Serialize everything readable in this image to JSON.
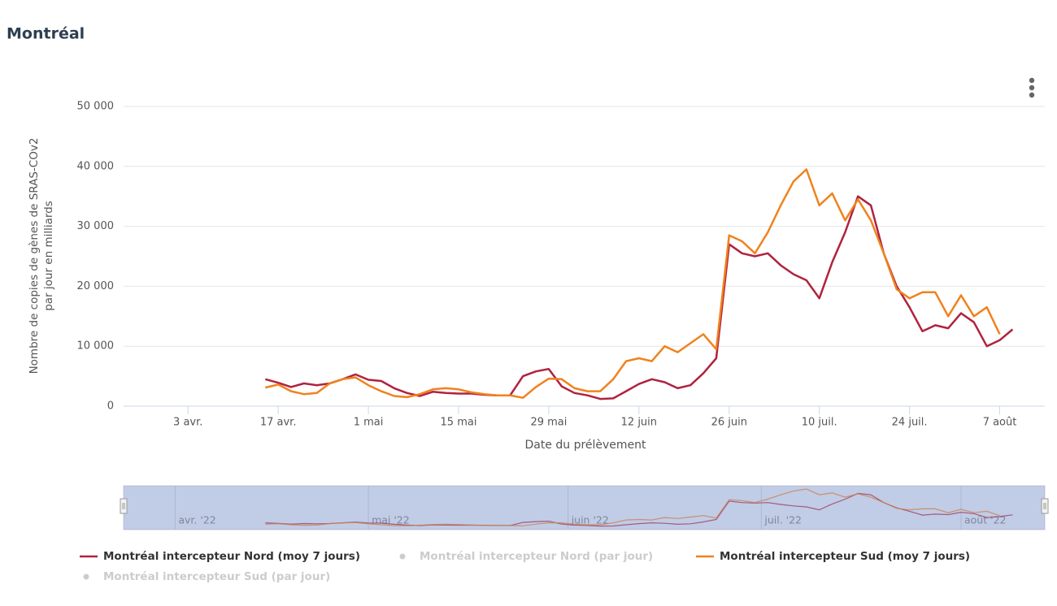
{
  "chart_data": {
    "type": "line",
    "title": "Montréal",
    "x_label": "Date du prélèvement",
    "y_label": [
      "Nombre de copies de gènes de SRAS-COv2",
      "par jour en milliards"
    ],
    "x": [
      "2022-04-15",
      "2022-04-17",
      "2022-04-19",
      "2022-04-21",
      "2022-04-23",
      "2022-04-25",
      "2022-04-27",
      "2022-04-29",
      "2022-05-01",
      "2022-05-03",
      "2022-05-05",
      "2022-05-07",
      "2022-05-09",
      "2022-05-11",
      "2022-05-13",
      "2022-05-15",
      "2022-05-17",
      "2022-05-19",
      "2022-05-21",
      "2022-05-23",
      "2022-05-25",
      "2022-05-27",
      "2022-05-29",
      "2022-05-31",
      "2022-06-02",
      "2022-06-04",
      "2022-06-06",
      "2022-06-08",
      "2022-06-10",
      "2022-06-12",
      "2022-06-14",
      "2022-06-16",
      "2022-06-18",
      "2022-06-20",
      "2022-06-22",
      "2022-06-24",
      "2022-06-26",
      "2022-06-28",
      "2022-06-30",
      "2022-07-02",
      "2022-07-04",
      "2022-07-06",
      "2022-07-08",
      "2022-07-10",
      "2022-07-12",
      "2022-07-14",
      "2022-07-16",
      "2022-07-18",
      "2022-07-20",
      "2022-07-22",
      "2022-07-24",
      "2022-07-26",
      "2022-07-28",
      "2022-07-30",
      "2022-08-01",
      "2022-08-03",
      "2022-08-05",
      "2022-08-07",
      "2022-08-09"
    ],
    "series": [
      {
        "name": "Montréal intercepteur Nord (moy 7 jours)",
        "color": "#b0223f",
        "visible": true,
        "values": [
          4500,
          3900,
          3200,
          3800,
          3500,
          3800,
          4500,
          5300,
          4400,
          4200,
          3000,
          2200,
          1700,
          2400,
          2200,
          2100,
          2100,
          1900,
          1800,
          1800,
          5000,
          5800,
          6200,
          3300,
          2200,
          1800,
          1200,
          1300,
          2500,
          3700,
          4500,
          4000,
          3000,
          3500,
          5500,
          8000,
          27000,
          25500,
          25000,
          25500,
          23500,
          22000,
          21000,
          18000,
          24000,
          29000,
          35000,
          33500,
          25500,
          20000,
          16500,
          12500,
          13500,
          13000,
          15500,
          14000,
          10000,
          11000,
          12800
        ]
      },
      {
        "name": "Montréal intercepteur Nord (par jour)",
        "color": "#cccccc",
        "visible": false
      },
      {
        "name": "Montréal intercepteur Sud (moy 7 jours)",
        "color": "#f0821e",
        "visible": true,
        "values": [
          3100,
          3600,
          2500,
          2000,
          2200,
          3800,
          4500,
          4800,
          3500,
          2500,
          1700,
          1500,
          2000,
          2800,
          3000,
          2800,
          2300,
          2000,
          1800,
          1800,
          1400,
          3200,
          4600,
          4500,
          3000,
          2500,
          2500,
          4500,
          7500,
          8000,
          7500,
          10000,
          9000,
          10500,
          12000,
          9500,
          28500,
          27500,
          25500,
          29000,
          33500,
          37500,
          39500,
          33500,
          35500,
          31000,
          34500,
          31000,
          25500,
          19500,
          18000,
          19000,
          19000,
          15000,
          18500,
          15000,
          16500,
          12000,
          null
        ]
      },
      {
        "name": "Montréal intercepteur Sud (par jour)",
        "color": "#cccccc",
        "visible": false
      }
    ],
    "xlim": [
      "2022-03-24",
      "2022-08-14"
    ],
    "xticks": [
      {
        "value": "2022-04-03",
        "label": "3 avr."
      },
      {
        "value": "2022-04-17",
        "label": "17 avr."
      },
      {
        "value": "2022-05-01",
        "label": "1 mai"
      },
      {
        "value": "2022-05-15",
        "label": "15 mai"
      },
      {
        "value": "2022-05-29",
        "label": "29 mai"
      },
      {
        "value": "2022-06-12",
        "label": "12 juin"
      },
      {
        "value": "2022-06-26",
        "label": "26 juin"
      },
      {
        "value": "2022-07-10",
        "label": "10 juil."
      },
      {
        "value": "2022-07-24",
        "label": "24 juil."
      },
      {
        "value": "2022-08-07",
        "label": "7 août"
      }
    ],
    "ylim": [
      0,
      50000
    ],
    "yticks": [
      0,
      {
        "value": 10000,
        "label": "10 000"
      },
      {
        "value": 20000,
        "label": "20 000"
      },
      {
        "value": 30000,
        "label": "30 000"
      },
      {
        "value": 40000,
        "label": "40 000"
      },
      {
        "value": 50000,
        "label": "50 000"
      }
    ],
    "grid": true,
    "navigator": {
      "xticks": [
        {
          "value": "2022-04-01",
          "label": "avr. '22"
        },
        {
          "value": "2022-05-01",
          "label": "mai '22"
        },
        {
          "value": "2022-06-01",
          "label": "juin '22"
        },
        {
          "value": "2022-07-01",
          "label": "juil. '22"
        },
        {
          "value": "2022-08-01",
          "label": "août '22"
        }
      ]
    }
  }
}
